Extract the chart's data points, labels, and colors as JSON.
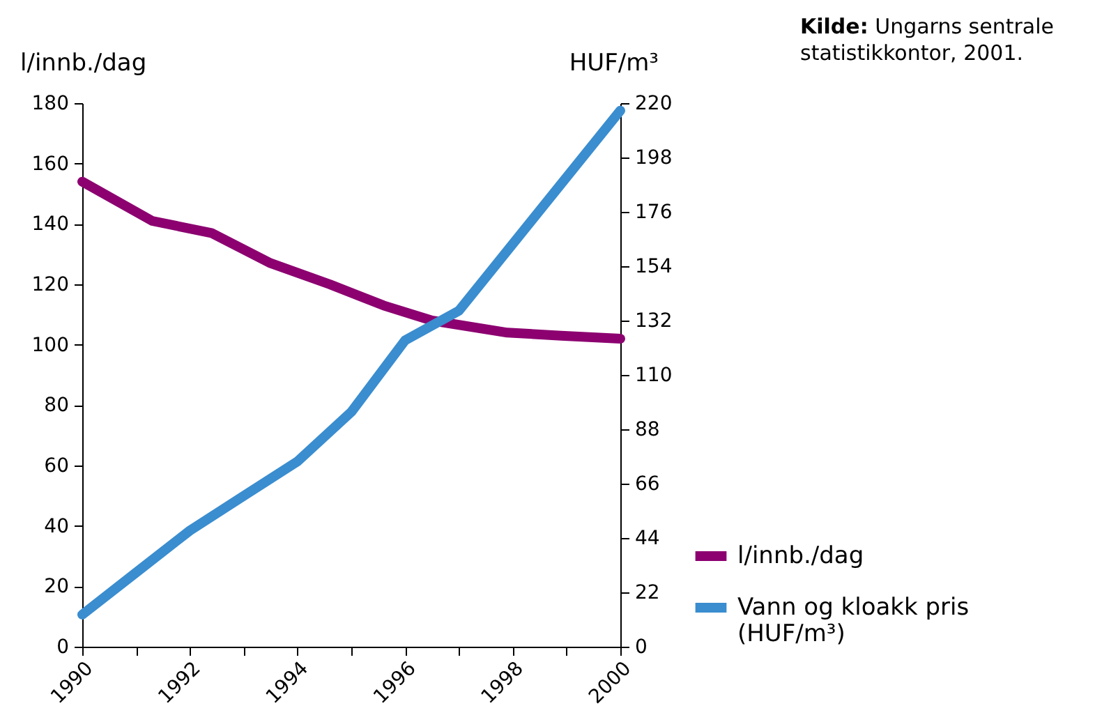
{
  "chart_data": {
    "type": "line",
    "ylabel": "l/innb./dag",
    "y2label": "HUF/m³",
    "annotations": [
      "Kilde: Ungarns sentrale statistikkontor, 2001."
    ],
    "xlim": [
      1990,
      2000
    ],
    "xticks": [
      1990,
      {
        "value": 1991,
        "label": null
      },
      1992,
      {
        "value": 1993,
        "label": null
      },
      1994,
      {
        "value": 1995,
        "label": null
      },
      1996,
      {
        "value": 1997,
        "label": null
      },
      1998,
      {
        "value": 1999,
        "label": null
      },
      2000
    ],
    "ylim": [
      0,
      180
    ],
    "yticks": [
      0,
      20,
      40,
      60,
      80,
      100,
      120,
      140,
      160,
      180
    ],
    "y2lim": [
      0,
      220
    ],
    "y2ticks": [
      0,
      22,
      44,
      66,
      88,
      110,
      132,
      154,
      176,
      198,
      220
    ],
    "grid": false,
    "legend": "bottom right",
    "line_style": "solid",
    "marker": "none",
    "series": [
      {
        "name": "l/innb./dag",
        "color": "#8c0070",
        "x": [
          1990,
          1991.3,
          1992.4,
          1993.5,
          1994.6,
          1995.6,
          1996.5,
          1997.9,
          1998.9,
          2000
        ],
        "values": [
          154,
          141,
          137,
          127,
          120,
          113,
          108,
          104,
          103,
          102
        ]
      },
      {
        "name": "Vann og kloakk pris (HUF/m³)",
        "color": "#3a8dcf",
        "axis": "y2",
        "x": [
          1990,
          1991,
          1992,
          1993,
          1994,
          1995,
          1996,
          1997,
          1998,
          1999,
          2000
        ],
        "values": [
          13,
          30,
          47,
          61,
          75,
          95,
          124,
          136,
          163,
          190,
          217
        ]
      }
    ]
  }
}
